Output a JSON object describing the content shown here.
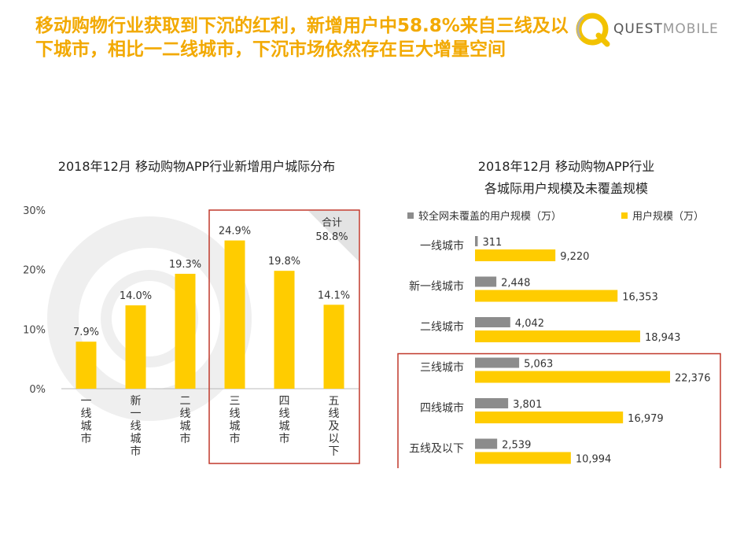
{
  "headline": "移动购物行业获取到下沉的红利，新增用户中58.8%来自三线及以下城市，相比一二线城市，下沉市场依然存在巨大增量空间",
  "logo": {
    "strong": "QUEST",
    "light": "MOBILE"
  },
  "colors": {
    "accent": "#f2a900",
    "bar_yellow": "#ffcc00",
    "bar_gray": "#8c8c8c",
    "highlight": "#c0392b"
  },
  "chart_data": [
    {
      "type": "bar",
      "title": "2018年12月 移动购物APP行业新增用户城际分布",
      "categories": [
        "一线城市",
        "新一线城市",
        "二线城市",
        "三线城市",
        "四线城市",
        "五线及以下"
      ],
      "values": [
        7.9,
        14.0,
        19.3,
        24.9,
        19.8,
        14.1
      ],
      "value_labels": [
        "7.9%",
        "14.0%",
        "19.3%",
        "24.9%",
        "19.8%",
        "14.1%"
      ],
      "yticks": [
        "0%",
        "10%",
        "20%",
        "30%"
      ],
      "ylim": [
        0,
        30
      ],
      "annotation": {
        "label": "合计",
        "value": "58.8%"
      },
      "highlight_categories": [
        "三线城市",
        "四线城市",
        "五线及以下"
      ]
    },
    {
      "type": "bar",
      "orientation": "horizontal",
      "title_lines": [
        "2018年12月 移动购物APP行业",
        "各城际用户规模及未覆盖规模"
      ],
      "categories": [
        "一线城市",
        "新一线城市",
        "二线城市",
        "三线城市",
        "四线城市",
        "五线及以下"
      ],
      "series": [
        {
          "name": "较全网未覆盖的用户规模（万）",
          "values": [
            311,
            2448,
            4042,
            5063,
            3801,
            2539
          ],
          "labels": [
            "311",
            "2,448",
            "4,042",
            "5,063",
            "3,801",
            "2,539"
          ]
        },
        {
          "name": "用户规模（万）",
          "values": [
            9220,
            16353,
            18943,
            22376,
            16979,
            10994
          ],
          "labels": [
            "9,220",
            "16,353",
            "18,943",
            "22,376",
            "16,979",
            "10,994"
          ]
        }
      ],
      "xlim": [
        0,
        26000
      ],
      "legend": "top",
      "highlight_categories": [
        "三线城市",
        "四线城市",
        "五线及以下"
      ]
    }
  ]
}
